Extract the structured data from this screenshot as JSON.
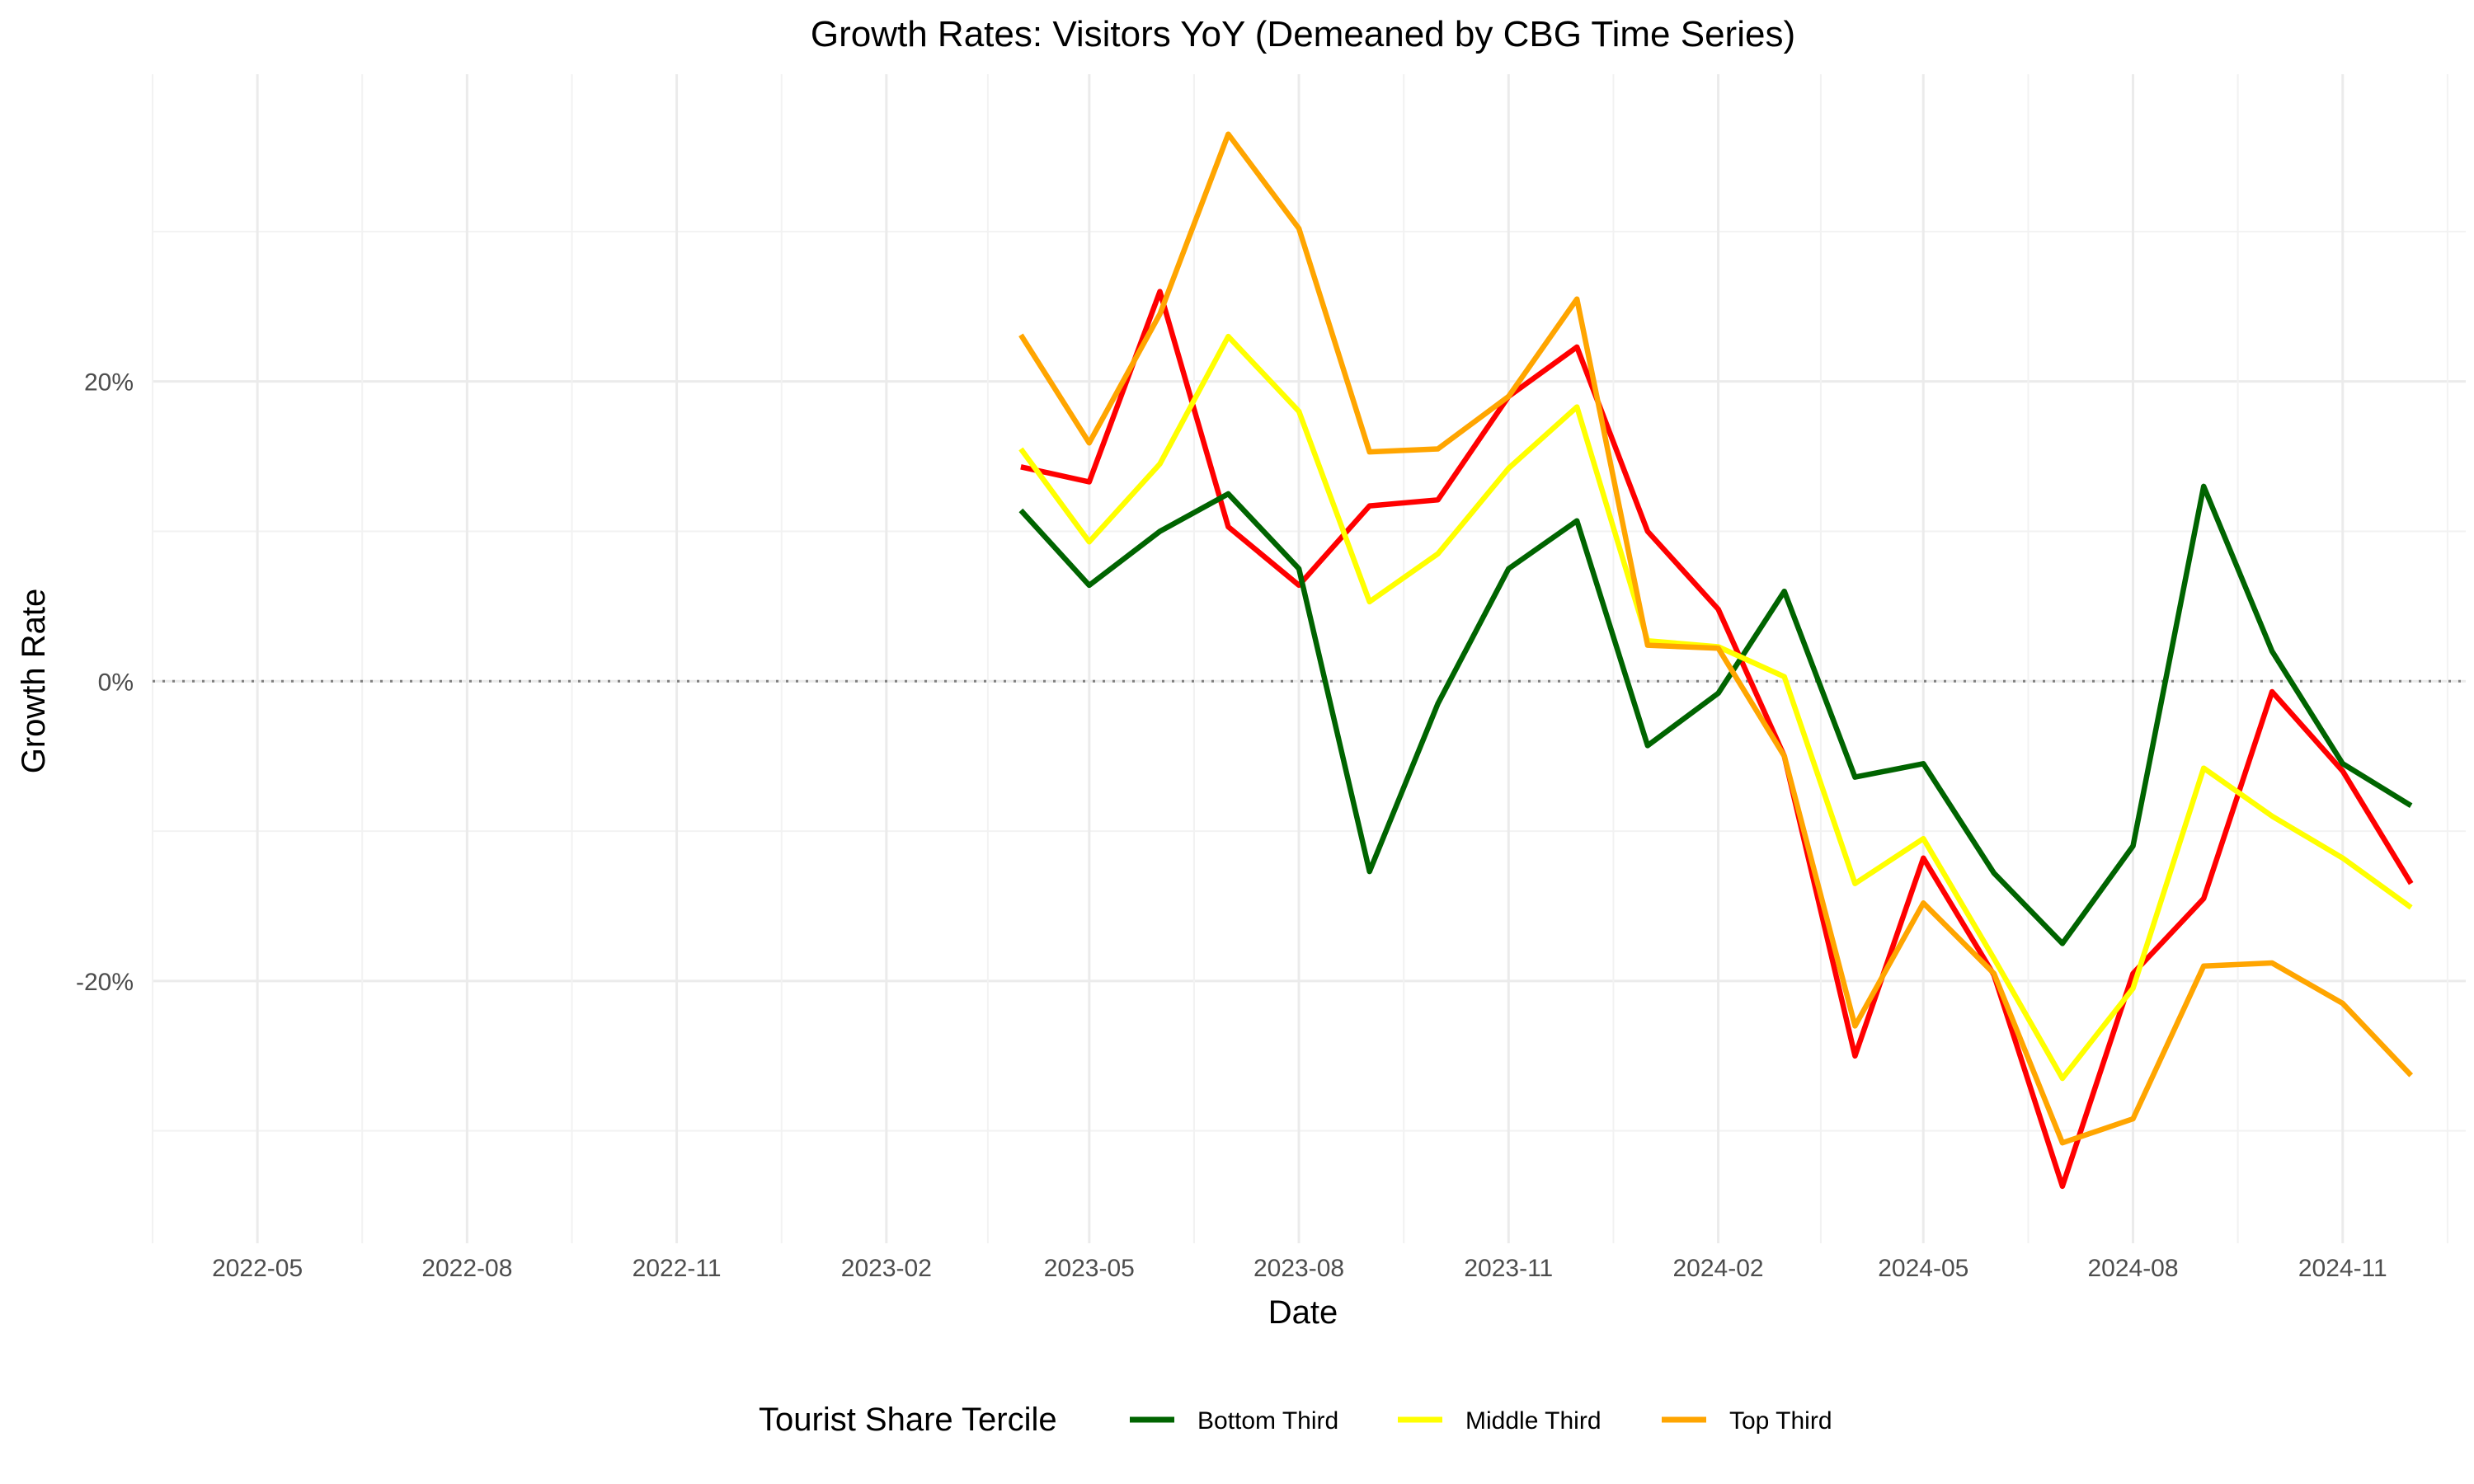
{
  "chart_data": {
    "type": "line",
    "title": "Growth Rates: Visitors YoY (Demeaned by CBG Time Series)",
    "xlabel": "Date",
    "ylabel": "Growth Rate",
    "x_range": [
      "2022-03-16",
      "2024-12-25"
    ],
    "ylim": [
      -37.5,
      40.5
    ],
    "x_ticks": [
      "2022-05",
      "2022-08",
      "2022-11",
      "2023-02",
      "2023-05",
      "2023-08",
      "2023-11",
      "2024-02",
      "2024-05",
      "2024-08",
      "2024-11"
    ],
    "x_tick_dates": [
      "2022-05-01",
      "2022-08-01",
      "2022-11-01",
      "2023-02-01",
      "2023-05-01",
      "2023-08-01",
      "2023-11-01",
      "2024-02-01",
      "2024-05-01",
      "2024-08-01",
      "2024-11-01"
    ],
    "y_ticks": [
      20,
      0,
      -20
    ],
    "y_tick_labels": [
      "20%",
      "0%",
      "-20%"
    ],
    "reference_line": {
      "y": 0,
      "style": "dotted"
    },
    "grid": true,
    "legend": {
      "title": "Tourist Share Tercile",
      "position": "bottom",
      "entries": [
        "Bottom Third",
        "Middle Third",
        "Top Third"
      ]
    },
    "x": [
      "2023-04-01",
      "2023-05-01",
      "2023-06-01",
      "2023-07-01",
      "2023-08-01",
      "2023-09-01",
      "2023-10-01",
      "2023-11-01",
      "2023-12-01",
      "2024-01-01",
      "2024-02-01",
      "2024-03-01",
      "2024-04-01",
      "2024-05-01",
      "2024-06-01",
      "2024-07-01",
      "2024-08-01",
      "2024-09-01",
      "2024-10-01",
      "2024-11-01",
      "2024-12-01"
    ],
    "series": [
      {
        "name": "",
        "color": "#ff0000",
        "in_legend": false,
        "values": [
          14.3,
          13.3,
          26,
          10.3,
          6.4,
          11.7,
          12.1,
          19,
          22.3,
          10,
          4.8,
          -5,
          -25,
          -11.8,
          -19.6,
          -33.7,
          -19.5,
          -14.5,
          -0.7,
          -6,
          -13.5
        ]
      },
      {
        "name": "Bottom Third",
        "color": "#006400",
        "in_legend": true,
        "values": [
          11.4,
          6.4,
          10,
          12.5,
          7.5,
          -12.7,
          -1.5,
          7.5,
          10.7,
          -4.3,
          -0.8,
          6,
          -6.4,
          -5.5,
          -12.8,
          -17.5,
          -11,
          13,
          2,
          -5.5,
          -8.3
        ]
      },
      {
        "name": "Middle Third",
        "color": "#ffff00",
        "in_legend": true,
        "values": [
          15.5,
          9.3,
          14.5,
          23,
          18,
          5.3,
          8.5,
          14.2,
          18.3,
          2.7,
          2.3,
          0.3,
          -13.5,
          -10.5,
          -18.5,
          -26.5,
          -20.5,
          -5.8,
          -9,
          -11.8,
          -15.1
        ]
      },
      {
        "name": "Top Third",
        "color": "#ffa500",
        "in_legend": true,
        "values": [
          23.1,
          15.9,
          24.5,
          36.5,
          30.2,
          15.3,
          15.5,
          19,
          25.5,
          2.4,
          2.2,
          -5,
          -23,
          -14.8,
          -19.5,
          -30.8,
          -29.2,
          -19,
          -18.8,
          -21.5,
          -26.3
        ]
      }
    ]
  }
}
